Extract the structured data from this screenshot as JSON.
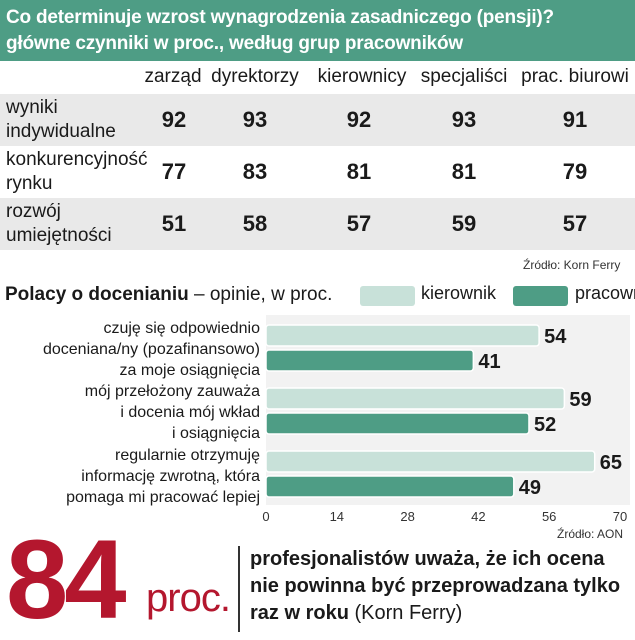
{
  "header": {
    "line1": "Co determinuje wzrost wynagrodzenia zasadniczego (pensji)?",
    "line2": "główne czynniki w proc., według grup pracowników"
  },
  "table": {
    "columns": [
      "zarząd",
      "dyrektorzy",
      "kierownicy",
      "specjaliści",
      "prac. biurowi"
    ],
    "rows": [
      {
        "label": "wyniki indywidualne",
        "values": [
          "92",
          "93",
          "92",
          "93",
          "91"
        ]
      },
      {
        "label": "konkurencyjność rynku",
        "values": [
          "77",
          "83",
          "81",
          "81",
          "79"
        ]
      },
      {
        "label": "rozwój umiejętności",
        "values": [
          "51",
          "58",
          "57",
          "59",
          "57"
        ]
      }
    ],
    "source": "Źródło: Korn Ferry"
  },
  "section2": {
    "title_bold": "Polacy o docenianiu",
    "title_rest": " – opinie, w proc.",
    "source": "Źródło: AON"
  },
  "chart_data": {
    "type": "bar",
    "orientation": "horizontal",
    "title": "Polacy o docenianiu – opinie, w proc.",
    "categories": [
      "czuję się odpowiednio doceniana/ny (pozafinansowo) za moje osiągnięcia",
      "mój przełożony zauważa i docenia mój wkład i osiągnięcia",
      "regularnie otrzymuję informację zwrotną, która pomaga mi pracować lepiej"
    ],
    "category_lines": [
      [
        "czuję się odpowiednio",
        "doceniana/ny (pozafinansowo)",
        "za moje osiągnięcia"
      ],
      [
        "mój przełożony zauważa",
        "i docenia mój wkład",
        "i osiągnięcia"
      ],
      [
        "regularnie otrzymuję",
        "informację zwrotną, która",
        "pomaga mi pracować lepiej"
      ]
    ],
    "series": [
      {
        "name": "kierownik",
        "values": [
          54,
          59,
          65
        ],
        "color": "#c8e1d9"
      },
      {
        "name": "pracownik",
        "values": [
          41,
          52,
          49
        ],
        "color": "#4e9d85"
      }
    ],
    "xlim": [
      0,
      70
    ],
    "xticks": [
      0,
      14,
      28,
      42,
      56,
      70
    ],
    "grid": false,
    "legend": "top-right"
  },
  "callout": {
    "number": "84",
    "unit": "proc.",
    "line1": "profesjonalistów uważa, że ich ocena",
    "line2": "nie powinna być przeprowadzana tylko",
    "line3_bold": "raz w roku",
    "line3_rest": " (Korn Ferry)"
  },
  "colors": {
    "header_bg": "#4e9d85",
    "row_shade": "#e9e9e9",
    "accent_red": "#b4172e"
  }
}
